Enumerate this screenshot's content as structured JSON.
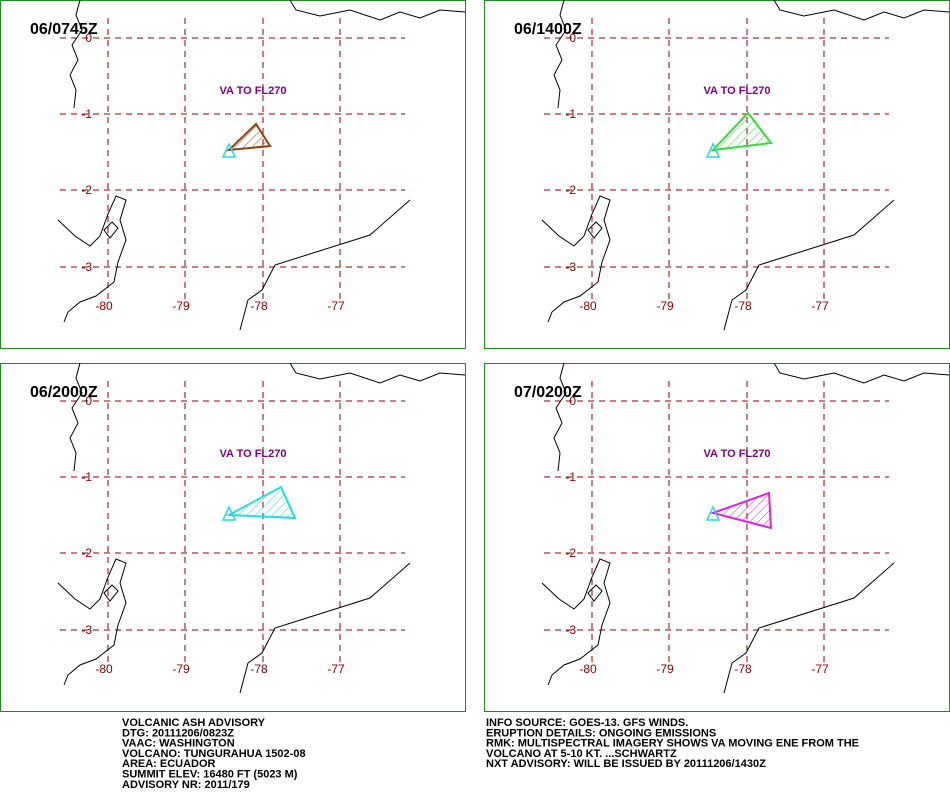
{
  "panels": [
    {
      "time": "06/0745Z",
      "annotation": "VA TO FL270",
      "color": "#8b4513"
    },
    {
      "time": "06/1400Z",
      "annotation": "VA TO FL270",
      "color": "#33dd33"
    },
    {
      "time": "06/2000Z",
      "annotation": "VA TO FL270",
      "color": "#22dddd"
    },
    {
      "time": "07/0200Z",
      "annotation": "VA TO FL270",
      "color": "#dd22dd"
    }
  ],
  "grid": {
    "lat_labels": [
      "0",
      "-1",
      "-2",
      "-3"
    ],
    "lon_labels": [
      "-80",
      "-79",
      "-78",
      "-77"
    ]
  },
  "advisory_left": [
    "VOLCANIC ASH ADVISORY",
    "DTG: 20111206/0823Z",
    "VAAC: WASHINGTON",
    "VOLCANO: TUNGURAHUA 1502-08",
    "AREA: ECUADOR",
    "SUMMIT ELEV: 16480 FT (5023 M)",
    "ADVISORY NR: 2011/179"
  ],
  "advisory_right": [
    "INFO SOURCE: GOES-13. GFS WINDS.",
    "ERUPTION DETAILS: ONGOING EMISSIONS",
    "RMK: MULTISPECTRAL IMAGERY SHOWS VA MOVING ENE FROM THE",
    "VOLCANO AT 5-10 KT. ...SCHWARTZ",
    "NXT ADVISORY: WILL BE ISSUED BY 20111206/1430Z"
  ]
}
